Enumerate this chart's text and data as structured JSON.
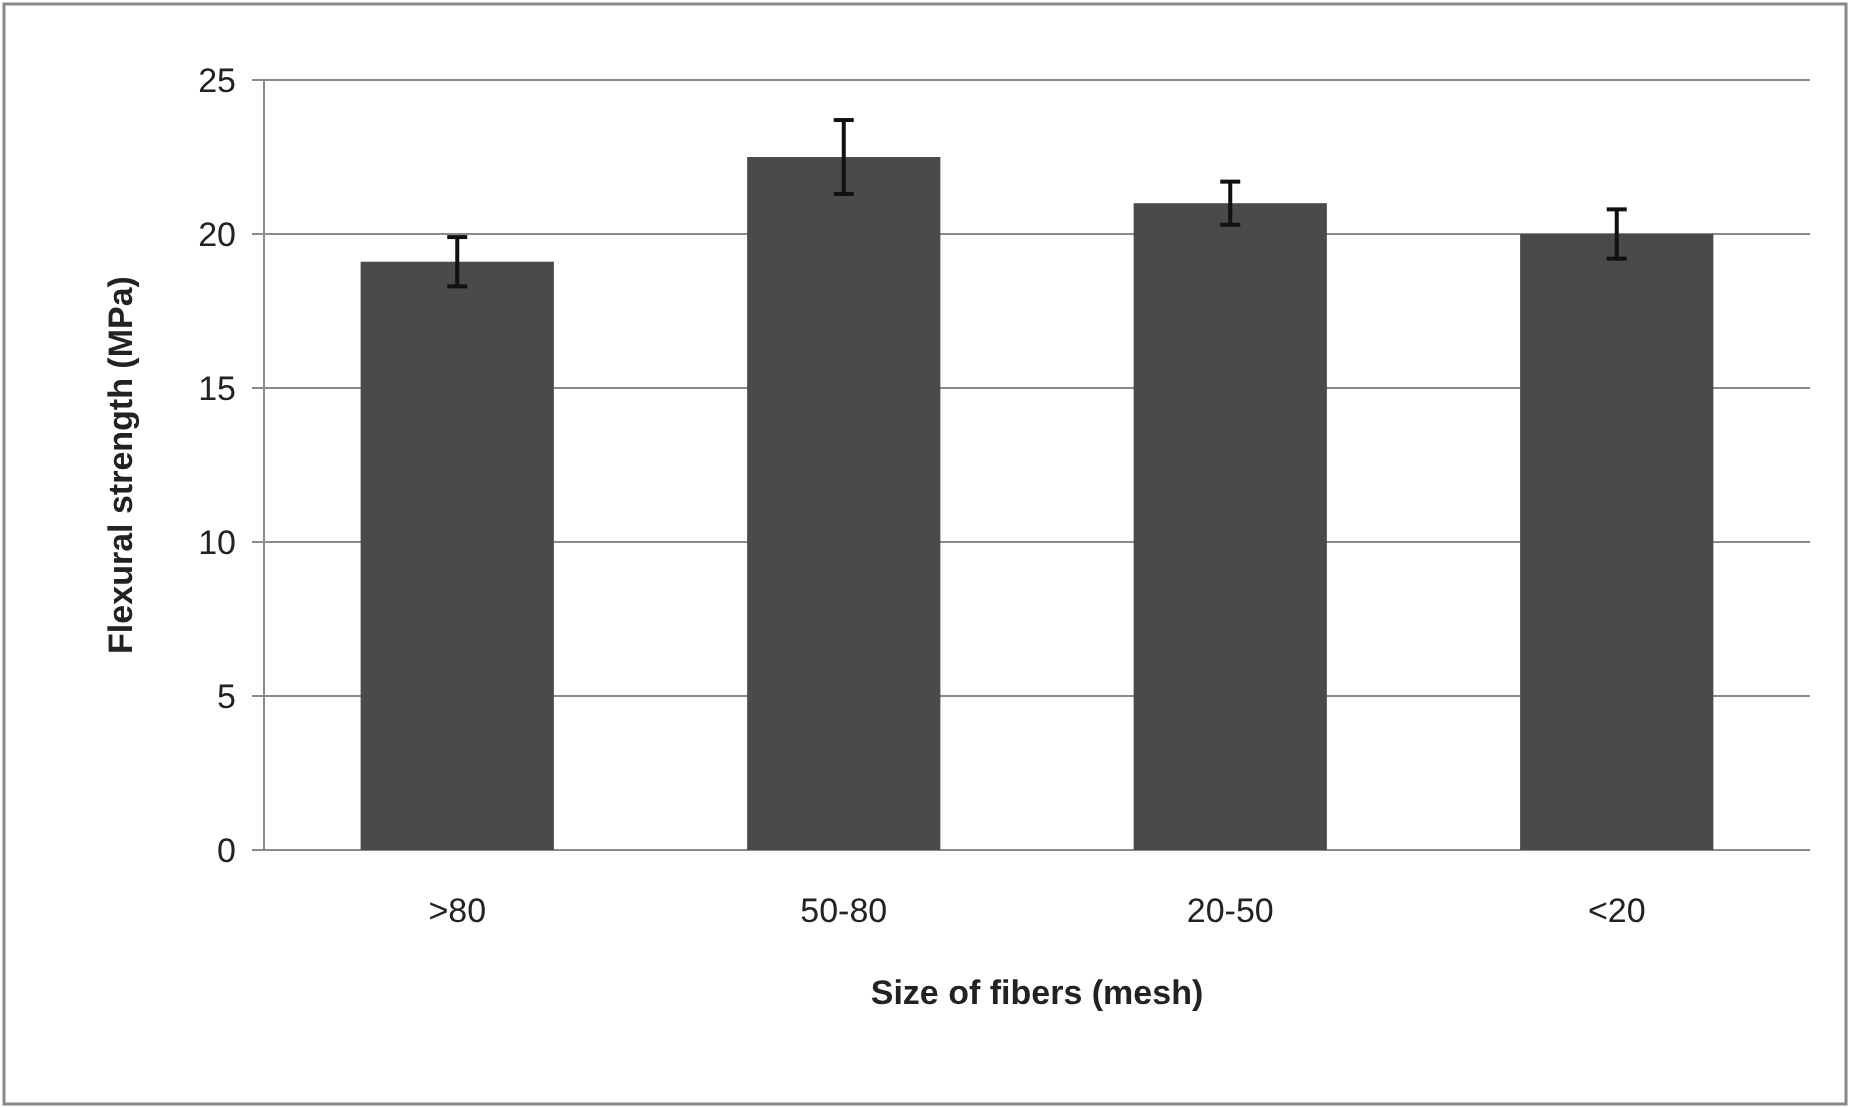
{
  "chart_data": {
    "type": "bar",
    "xlabel": "Size of fibers (mesh)",
    "ylabel": "Flexural strength (MPa)",
    "categories": [
      ">80",
      "50-80",
      "20-50",
      "<20"
    ],
    "values": [
      19.1,
      22.5,
      21.0,
      20.0
    ],
    "errors": [
      0.8,
      1.2,
      0.7,
      0.8
    ],
    "color": "#4a4a4a",
    "ylim": [
      0,
      25
    ],
    "yticks": [
      0,
      5,
      10,
      15,
      20,
      25
    ],
    "grid": "y"
  }
}
